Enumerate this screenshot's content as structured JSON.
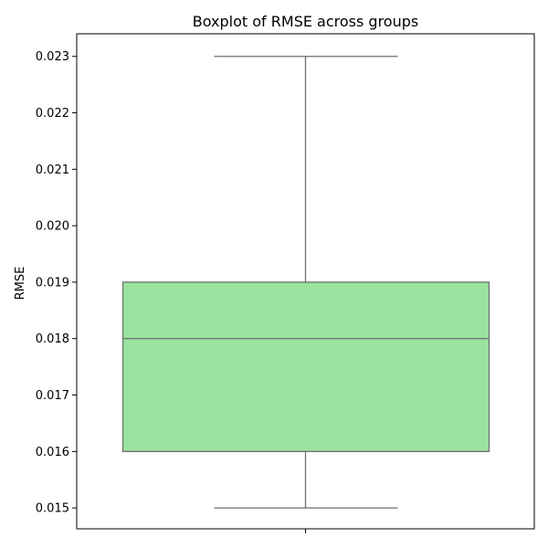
{
  "chart_data": {
    "type": "box",
    "title": "Boxplot of RMSE across groups",
    "xlabel": "",
    "ylabel": "RMSE",
    "ylim": [
      0.01463,
      0.0234
    ],
    "yticks": [
      0.015,
      0.016,
      0.017,
      0.018,
      0.019,
      0.02,
      0.021,
      0.022,
      0.023
    ],
    "ytick_labels": [
      "0.015",
      "0.016",
      "0.017",
      "0.018",
      "0.019",
      "0.020",
      "0.021",
      "0.022",
      "0.023"
    ],
    "grid": false,
    "legend": "none",
    "series": [
      {
        "name": "RMSE",
        "whisker_low": 0.015,
        "q1": 0.016,
        "median": 0.018,
        "q3": 0.019,
        "whisker_high": 0.023
      }
    ],
    "colors": {
      "box_fill": "#9ae39e",
      "box_edge": "#6e6e6e",
      "axis": "#000000"
    }
  }
}
